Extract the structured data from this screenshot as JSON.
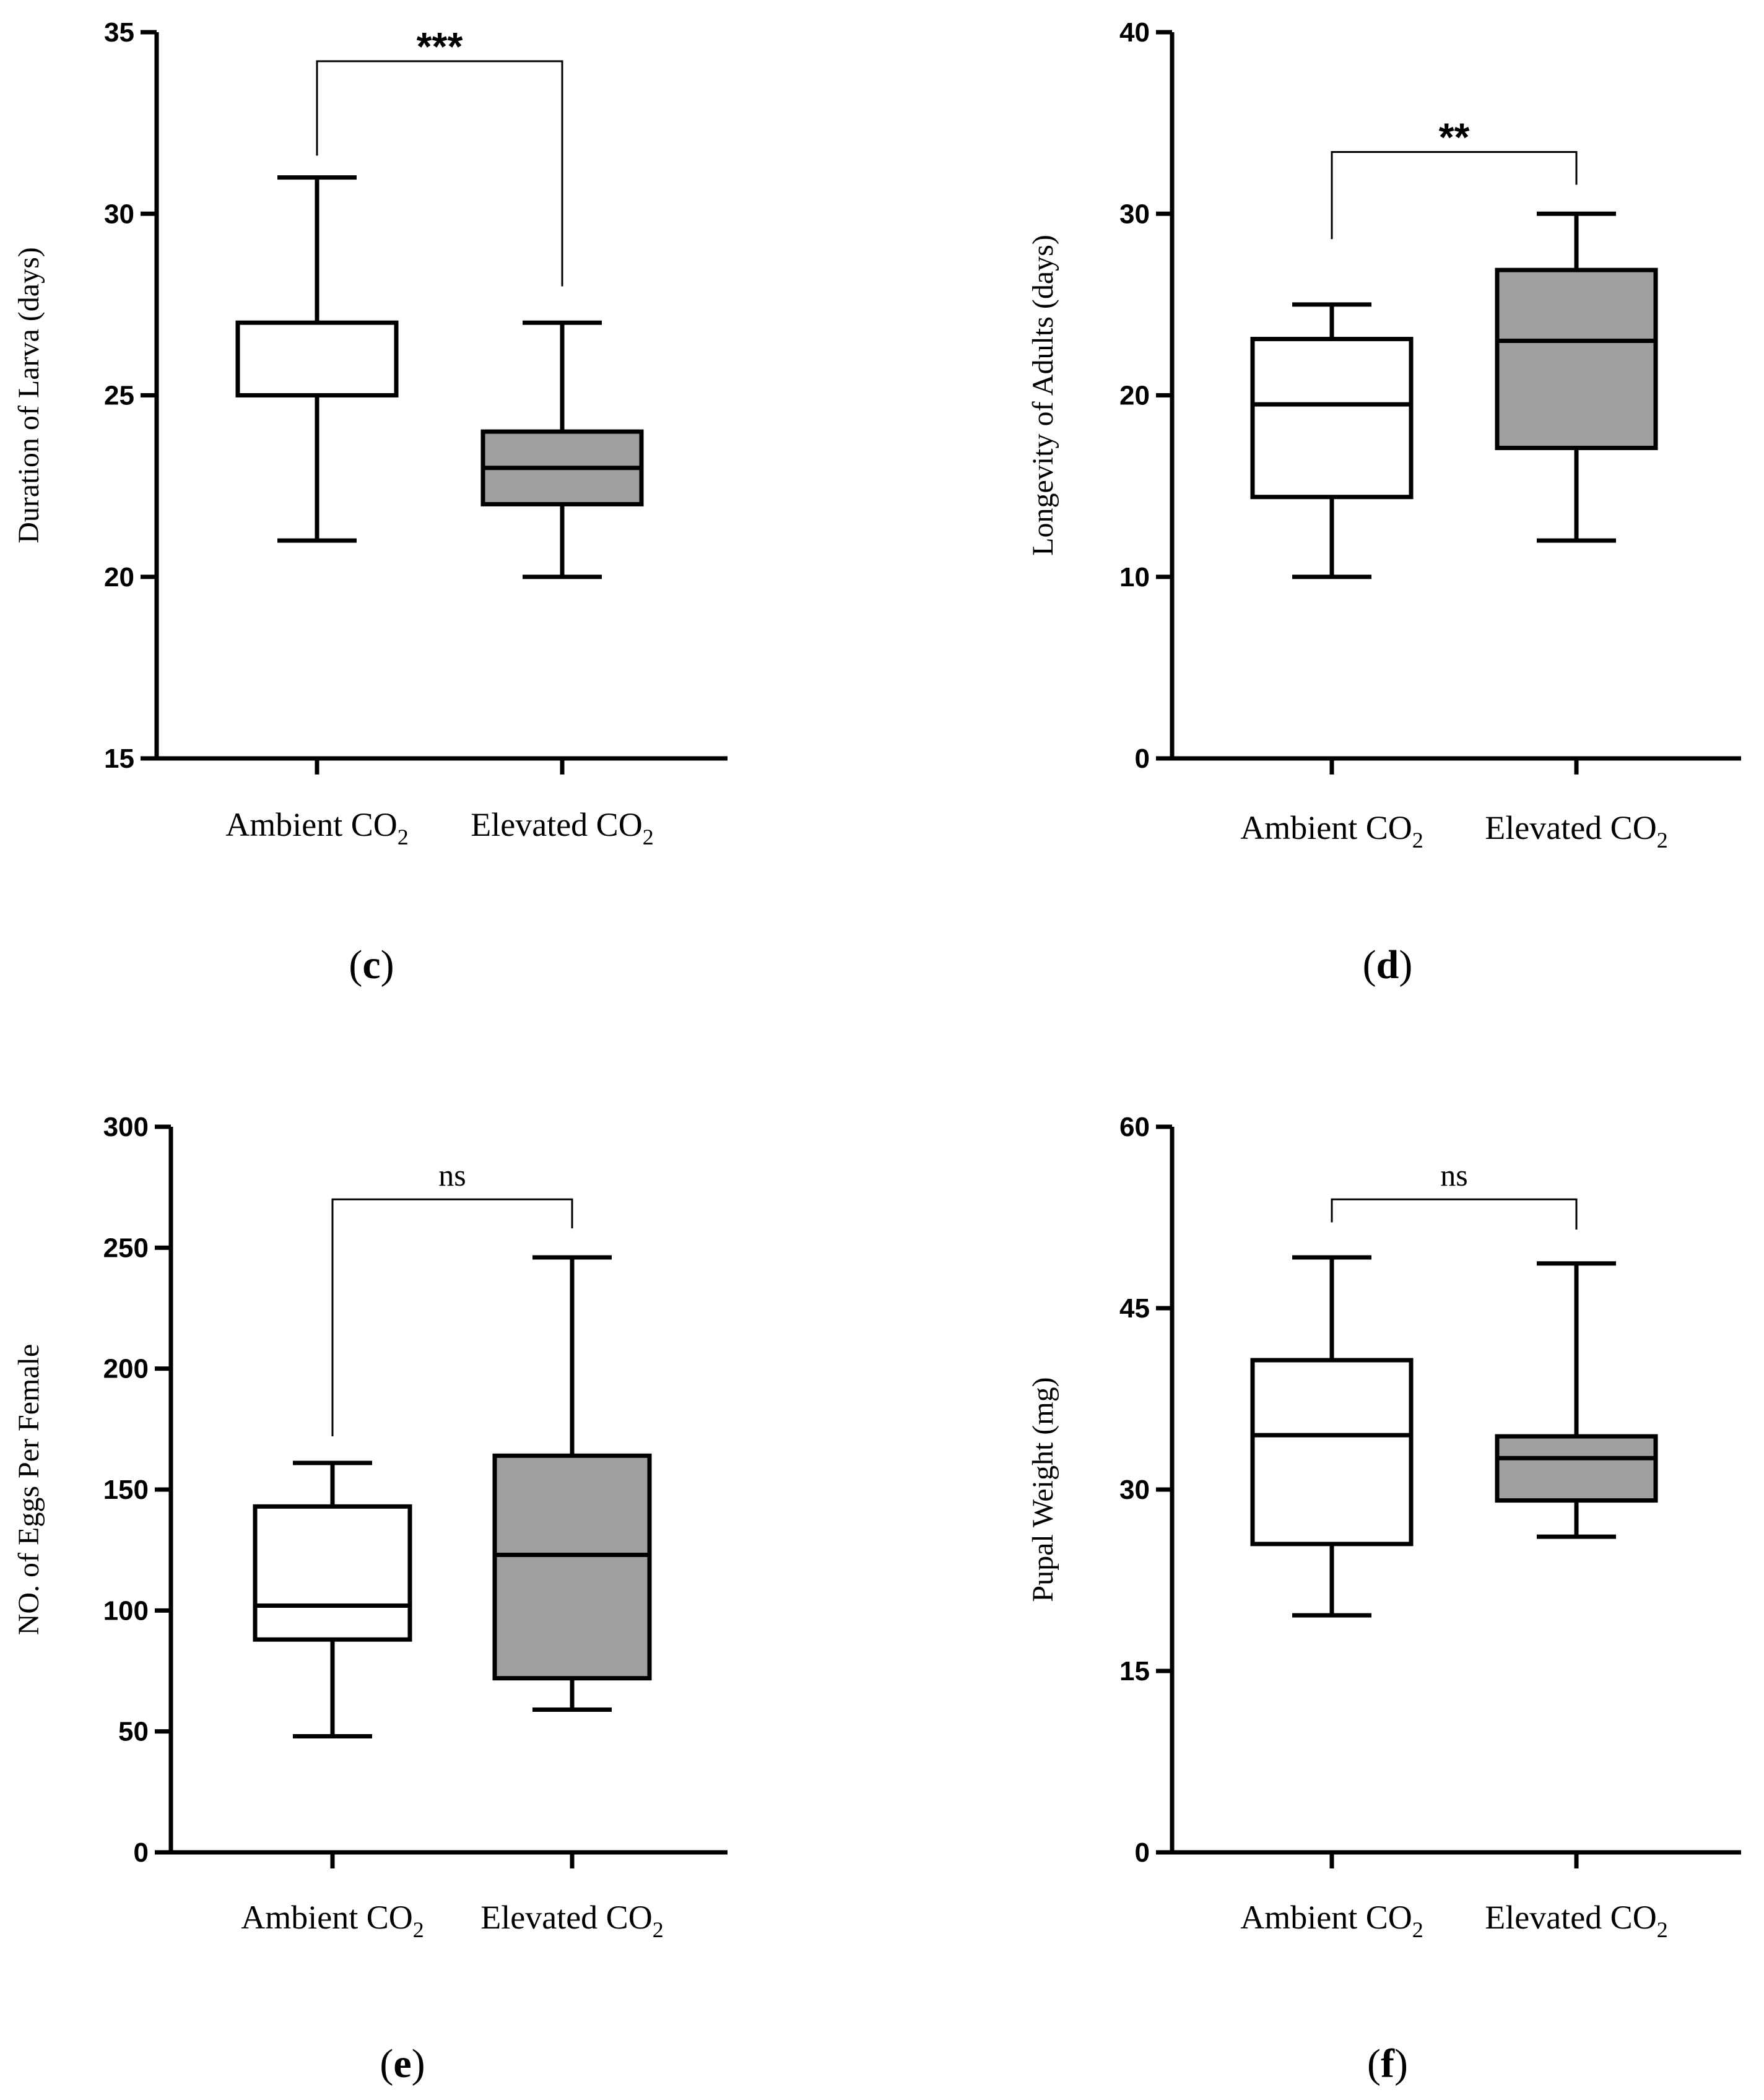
{
  "chart_data": [
    {
      "type": "box",
      "panel_label": "c",
      "ylabel": "Duration of Larva (days)",
      "ylim": [
        15,
        35
      ],
      "yticks": [
        15,
        20,
        25,
        30,
        35
      ],
      "categories": [
        {
          "label": "Ambient CO",
          "subscript": "2",
          "min": 21,
          "q1": 25,
          "median": 25,
          "q3": 27,
          "max": 31,
          "fill": "#ffffff"
        },
        {
          "label": "Elevated CO",
          "subscript": "2",
          "min": 20,
          "q1": 22,
          "median": 23,
          "q3": 24,
          "max": 27,
          "fill": "#a0a0a0"
        }
      ],
      "significance": {
        "text": "***",
        "bracket_top": 34.2,
        "left_end": 31.6,
        "right_end": 28.0
      }
    },
    {
      "type": "box",
      "panel_label": "d",
      "ylabel": "Longevity of Adults (days)",
      "ylim": [
        0,
        40
      ],
      "yticks": [
        0,
        10,
        20,
        30,
        40
      ],
      "categories": [
        {
          "label": "Ambient CO",
          "subscript": "2",
          "min": 10,
          "q1": 14.4,
          "median": 19.5,
          "q3": 23.1,
          "max": 25,
          "fill": "#ffffff"
        },
        {
          "label": "Elevated CO",
          "subscript": "2",
          "min": 12,
          "q1": 17.1,
          "median": 23,
          "q3": 26.9,
          "max": 30,
          "fill": "#a0a0a0"
        }
      ],
      "significance": {
        "text": "**",
        "bracket_top": 33.4,
        "left_end": 28.6,
        "right_end": 31.6
      }
    },
    {
      "type": "box",
      "panel_label": "e",
      "ylabel": "NO. of Eggs Per Female",
      "ylim": [
        0,
        300
      ],
      "yticks": [
        0,
        50,
        100,
        150,
        200,
        250,
        300
      ],
      "categories": [
        {
          "label": "Ambient CO",
          "subscript": "2",
          "min": 48,
          "q1": 88,
          "median": 102,
          "q3": 143,
          "max": 161,
          "fill": "#ffffff"
        },
        {
          "label": "Elevated CO",
          "subscript": "2",
          "min": 59,
          "q1": 72,
          "median": 123,
          "q3": 164,
          "max": 246,
          "fill": "#a0a0a0"
        }
      ],
      "significance": {
        "text": "ns",
        "bracket_top": 270,
        "left_end": 172,
        "right_end": 258
      }
    },
    {
      "type": "box",
      "panel_label": "f",
      "ylabel": "Pupal Weight (mg)",
      "ylim": [
        0,
        60
      ],
      "yticks": [
        0,
        15,
        30,
        45,
        60
      ],
      "categories": [
        {
          "label": "Ambient CO",
          "subscript": "2",
          "min": 19.6,
          "q1": 25.5,
          "median": 34.5,
          "q3": 40.7,
          "max": 49.2,
          "fill": "#ffffff"
        },
        {
          "label": "Elevated CO",
          "subscript": "2",
          "min": 26.1,
          "q1": 29.1,
          "median": 32.6,
          "q3": 34.4,
          "max": 48.7,
          "fill": "#a0a0a0"
        }
      ],
      "significance": {
        "text": "ns",
        "bracket_top": 54,
        "left_end": 52.1,
        "right_end": 51.5
      }
    }
  ]
}
